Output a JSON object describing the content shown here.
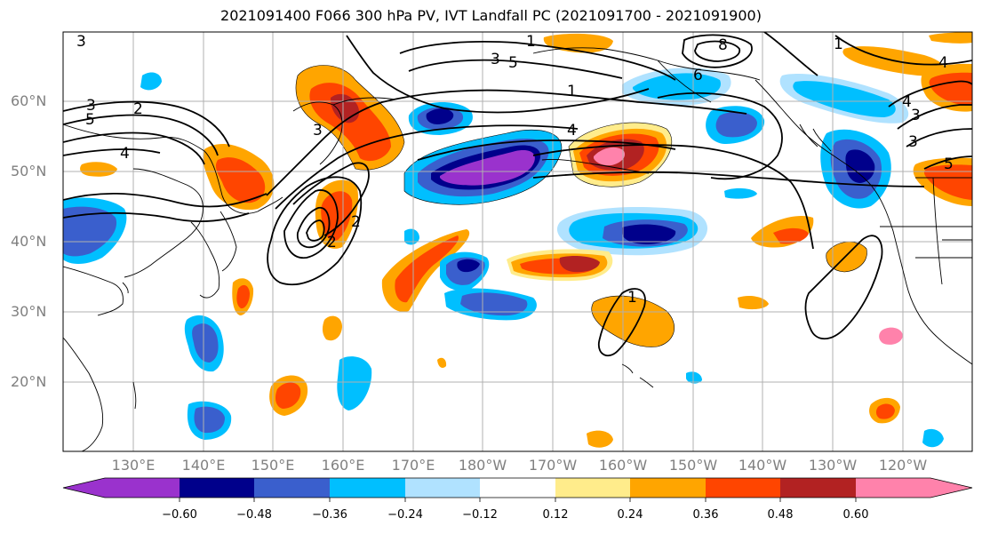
{
  "title": "2021091400 F066 300 hPa PV, IVT Landfall PC (2021091700 - 2021091900)",
  "lat_labels": [
    "60°N",
    "50°N",
    "40°N",
    "30°N",
    "20°N"
  ],
  "lon_labels": [
    "130°E",
    "140°E",
    "150°E",
    "160°E",
    "170°E",
    "180°W",
    "170°W",
    "160°W",
    "150°W",
    "140°W",
    "130°W",
    "120°W"
  ],
  "colorbar": {
    "colors": [
      "#9a32cd",
      "#00008b",
      "#3a5fcd",
      "#00bfff",
      "#b0e2ff",
      "#ffffff",
      "#ffec8b",
      "#ffa500",
      "#ff4500",
      "#b22222",
      "#ff82ab"
    ],
    "tick_labels": [
      "−0.60",
      "−0.48",
      "−0.36",
      "−0.24",
      "−0.12",
      "0.12",
      "0.24",
      "0.36",
      "0.48",
      "0.60"
    ]
  },
  "contour_labels": [
    "3",
    "5",
    "2",
    "4",
    "1",
    "3",
    "5",
    "8",
    "6",
    "1",
    "4",
    "2",
    "1",
    "3",
    "4",
    "5",
    "3",
    "3",
    "2",
    "1",
    "3",
    "4"
  ]
}
